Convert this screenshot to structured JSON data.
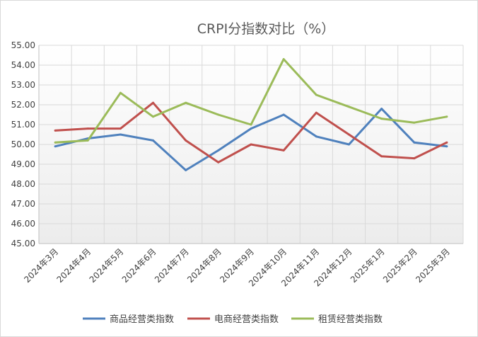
{
  "chart_data": {
    "type": "line",
    "title": "CRPI分指数对比（%）",
    "xlabel": "",
    "ylabel": "",
    "categories": [
      "2024年3月",
      "2024年4月",
      "2024年5月",
      "2024年6月",
      "2024年7月",
      "2024年8月",
      "2024年9月",
      "2024年10月",
      "2024年11月",
      "2024年12月",
      "2025年1月",
      "2025年2月",
      "2025年3月"
    ],
    "y_ticks": [
      "45.00",
      "46.00",
      "47.00",
      "48.00",
      "49.00",
      "50.00",
      "51.00",
      "52.00",
      "53.00",
      "54.00",
      "55.00"
    ],
    "ylim": [
      45,
      55
    ],
    "grid": true,
    "legend_position": "bottom",
    "series": [
      {
        "name": "商品经营类指数",
        "color": "#4f81bd",
        "values": [
          49.9,
          50.3,
          50.5,
          50.2,
          48.7,
          49.7,
          50.8,
          51.5,
          50.4,
          50.0,
          51.8,
          50.1,
          49.9
        ]
      },
      {
        "name": "电商经营类指数",
        "color": "#c0504d",
        "values": [
          50.7,
          50.8,
          50.8,
          52.1,
          50.2,
          49.1,
          50.0,
          49.7,
          51.6,
          50.5,
          49.4,
          49.3,
          50.1
        ]
      },
      {
        "name": "租赁经营类指数",
        "color": "#9bbb59",
        "values": [
          50.1,
          50.2,
          52.6,
          51.4,
          52.1,
          51.5,
          51.0,
          54.3,
          52.5,
          51.9,
          51.3,
          51.1,
          51.4
        ]
      }
    ]
  }
}
